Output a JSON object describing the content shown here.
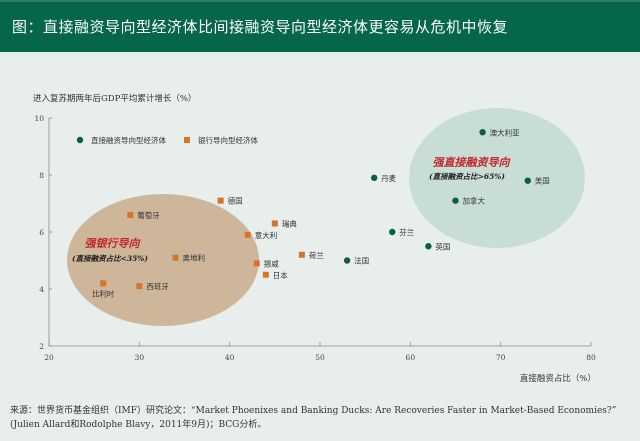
{
  "header": {
    "title": "图：直接融资导向型经济体比间接融资导向型经济体更容易从危机中恢复"
  },
  "chart_data": {
    "type": "scatter",
    "ylabel": "进入复苏期两年后GDP平均累计增长（%）",
    "xlabel": "直接融资占比（%）",
    "xlim": [
      20,
      80
    ],
    "ylim": [
      2,
      10
    ],
    "xticks": [
      "20",
      "30",
      "40",
      "50",
      "60",
      "70",
      "80"
    ],
    "yticks": [
      "2",
      "4",
      "6",
      "8",
      "10"
    ],
    "grid": false,
    "legend_placement": "top-left",
    "series": [
      {
        "name": "直接融资导向型经济体",
        "color": "#0b5e3f",
        "marker": "circle",
        "points": [
          {
            "label": "澳大利亚",
            "x": 68,
            "y": 9.5
          },
          {
            "label": "丹麦",
            "x": 56,
            "y": 7.9
          },
          {
            "label": "美国",
            "x": 73,
            "y": 7.8
          },
          {
            "label": "加拿大",
            "x": 65,
            "y": 7.1
          },
          {
            "label": "芬兰",
            "x": 58,
            "y": 6.0
          },
          {
            "label": "英国",
            "x": 62,
            "y": 5.5
          },
          {
            "label": "法国",
            "x": 53,
            "y": 5.0
          }
        ]
      },
      {
        "name": "银行导向型经济体",
        "color": "#d9732a",
        "marker": "square",
        "points": [
          {
            "label": "德国",
            "x": 39,
            "y": 7.1
          },
          {
            "label": "葡萄牙",
            "x": 29,
            "y": 6.6
          },
          {
            "label": "瑞典",
            "x": 45,
            "y": 6.3
          },
          {
            "label": "意大利",
            "x": 42,
            "y": 5.9
          },
          {
            "label": "荷兰",
            "x": 48,
            "y": 5.2
          },
          {
            "label": "奥地利",
            "x": 34,
            "y": 5.1
          },
          {
            "label": "挪威",
            "x": 43,
            "y": 4.9
          },
          {
            "label": "日本",
            "x": 44,
            "y": 4.5
          },
          {
            "label": "比利时",
            "x": 26,
            "y": 4.2
          },
          {
            "label": "西班牙",
            "x": 30,
            "y": 4.1
          }
        ]
      }
    ],
    "annotations": [
      {
        "title": "强银行导向",
        "subtitle": "(直接融资占比<35%)",
        "color": "#c9a98a"
      },
      {
        "title": "强直接融资导向",
        "subtitle": "(直接融资占比>65%)",
        "color": "#c8ddd4"
      }
    ]
  },
  "source": {
    "line1": "来源：世界货币基金组织（IMF）研究论文：“Market Phoenixes and Banking Ducks: Are Recoveries Faster in Market-Based Economies?”",
    "line2": "(Julien Allard和Rodolphe Blavy，2011年9月)；BCG分析。"
  }
}
